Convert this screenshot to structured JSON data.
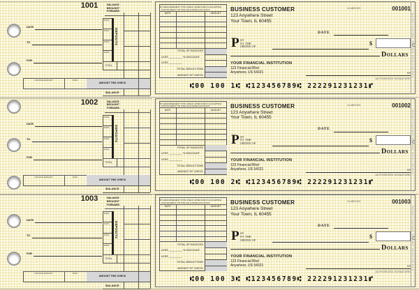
{
  "colors": {
    "paper": "#fcf9e6",
    "pattern_yellow": "#ddcc5e",
    "shade_gray": "#d7d7d7",
    "ink": "#1c1c1c",
    "hole_ring": "#9a9a9a"
  },
  "labels": {
    "stub": {
      "balance_brought_forward": "BALANCE BROUGHT FORWARD",
      "date": "DATE",
      "to": "TO",
      "for": "FOR",
      "deposits": "DEPOSITS",
      "deposit_date": "DATE",
      "total": "TOTAL",
      "invoice_amount": "INVOICE AMOUNT",
      "disc": "DISC.",
      "amount_this_check": "AMOUNT THIS CHECK",
      "balance": "BALANCE"
    },
    "voucher": {
      "endorsement_line1": "BY ENDORSEMENT THIS CHECK WHEN PAID IS ACCEPTED",
      "endorsement_line2": "FOR PAYMENT ON THE FOLLOWING ACCOUNT",
      "date_col": "DATE",
      "amount_col": "AMOUNT",
      "total_of_invoices": "TOTAL OF INVOICES",
      "less_discount": "LESS _________ % DISCOUNT",
      "less": "LESS _________",
      "total_deductions": "TOTAL DEDUCTIONS",
      "amount_of_check": "AMOUNT OF CHECK"
    },
    "check": {
      "date": "DATE",
      "pay_p": "P",
      "pay_ay": "AY",
      "pay_to_the": "TO THE",
      "pay_order_of": "ORDER OF",
      "dollar_sign": "$",
      "dollars": "Dollars",
      "mp": "MP",
      "authorized_signature": "AUTHORIZED SIGNATURE",
      "edge_note": "SECURITY FEATURES INCLUDED. DETAILS ON BACK."
    }
  },
  "payer": {
    "name": "BUSINESS CUSTOMER",
    "address_line1": "123 Anywhere Street",
    "address_line2": "Your Town, IL 60455",
    "fraction": "12-4567/123"
  },
  "bank": {
    "name": "YOUR FINANCIAL INSTITUTION",
    "address_line1": "123 Financial Blvd",
    "address_line2": "Anywhere, US 54321"
  },
  "sections": [
    {
      "stub_number": "1001",
      "check_number": "001001",
      "micr": "⑆00 100 1⑆  ⑆123456789⑆  222291231231⑈"
    },
    {
      "stub_number": "1002",
      "check_number": "001002",
      "micr": "⑆00 100 2⑆  ⑆123456789⑆  222291231231⑈"
    },
    {
      "stub_number": "1003",
      "check_number": "001003",
      "micr": "⑆00 100 3⑆  ⑆123456789⑆  222291231231⑈"
    }
  ]
}
